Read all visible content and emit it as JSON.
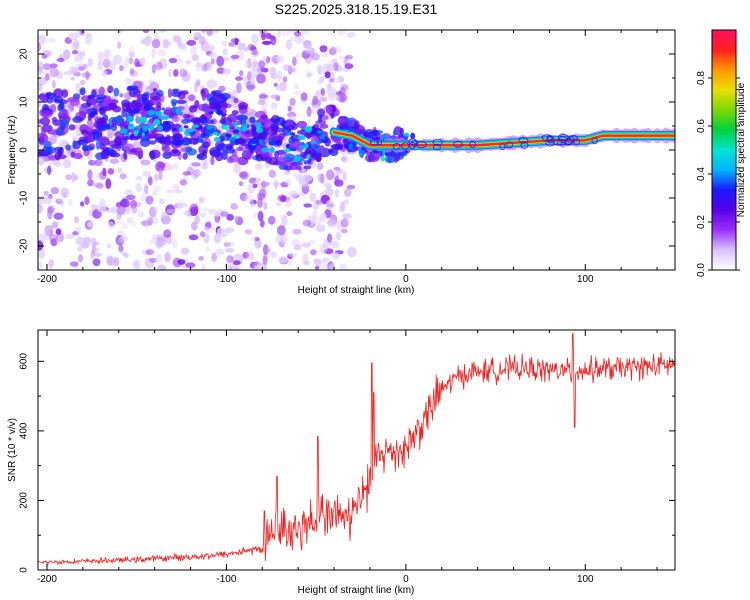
{
  "title": "S225.2025.318.15.19.E31",
  "colors": {
    "snr_line": "#ee2222",
    "axes": "#000000",
    "spectrogram_ridge": "#dd2233",
    "background": "#ffffff"
  },
  "chart_data": [
    {
      "type": "heatmap",
      "name": "spectrogram",
      "xlabel": "Height of straight line (km)",
      "ylabel": "Frequency (Hz)",
      "xlim": [
        -205,
        150
      ],
      "ylim": [
        -25,
        25
      ],
      "x_ticks": [
        -200,
        -100,
        0,
        100
      ],
      "x_tick_labels": [
        "-200",
        "-100",
        "0",
        "100"
      ],
      "y_ticks": [
        -20,
        -10,
        0,
        10,
        20
      ],
      "y_tick_labels": [
        "-20",
        "-10",
        "0",
        "10",
        "20"
      ],
      "ridge": {
        "description": "dominant frequency track",
        "x": [
          -200,
          -150,
          -100,
          -80,
          -60,
          -45,
          -30,
          -20,
          0,
          20,
          40,
          60,
          80,
          100,
          110,
          150
        ],
        "y": [
          5,
          6,
          5,
          3,
          0,
          4,
          3,
          1,
          1,
          1,
          1,
          1.5,
          2,
          2,
          3,
          3
        ]
      },
      "colorbar": {
        "label": "Normalized spectral amplitude",
        "range": [
          0,
          1
        ],
        "ticks": [
          0,
          0.2,
          0.4,
          0.6,
          0.8
        ],
        "tick_labels": [
          "0.0",
          "0.2",
          "0.4",
          "0.6",
          "0.8"
        ],
        "colormap": [
          "#ffffff",
          "#d9c2ff",
          "#9b30ff",
          "#5a00e6",
          "#1a1aff",
          "#00b4ff",
          "#00e5d0",
          "#00d040",
          "#7cd800",
          "#e8e000",
          "#ff9900",
          "#ff2020",
          "#ff1060"
        ]
      }
    },
    {
      "type": "line",
      "name": "snr",
      "xlabel": "Height of straight line (km)",
      "ylabel": "SNR (10 * v/v)",
      "xlim": [
        -205,
        150
      ],
      "ylim": [
        0,
        690
      ],
      "x_ticks": [
        -200,
        -100,
        0,
        100
      ],
      "x_tick_labels": [
        "-200",
        "-100",
        "0",
        "100"
      ],
      "y_ticks": [
        0,
        200,
        400,
        600
      ],
      "y_tick_labels": [
        "0",
        "200",
        "400",
        "600"
      ],
      "series": [
        {
          "name": "SNR",
          "x": [
            -205,
            -180,
            -150,
            -120,
            -100,
            -90,
            -80,
            -75,
            -70,
            -60,
            -50,
            -40,
            -30,
            -25,
            -20,
            -15,
            -10,
            0,
            10,
            20,
            30,
            40,
            60,
            80,
            90,
            100,
            120,
            150
          ],
          "y": [
            22,
            25,
            30,
            38,
            45,
            55,
            60,
            120,
            115,
            120,
            150,
            160,
            150,
            210,
            250,
            330,
            340,
            350,
            430,
            520,
            560,
            570,
            580,
            575,
            570,
            575,
            580,
            590
          ]
        }
      ],
      "spikes": [
        {
          "x": -79,
          "y": 170
        },
        {
          "x": -72,
          "y": 270
        },
        {
          "x": -49,
          "y": 385
        },
        {
          "x": -19,
          "y": 595
        },
        {
          "x": -18,
          "y": 510
        },
        {
          "x": 93,
          "y": 680
        },
        {
          "x": 94,
          "y": 410
        }
      ]
    }
  ]
}
